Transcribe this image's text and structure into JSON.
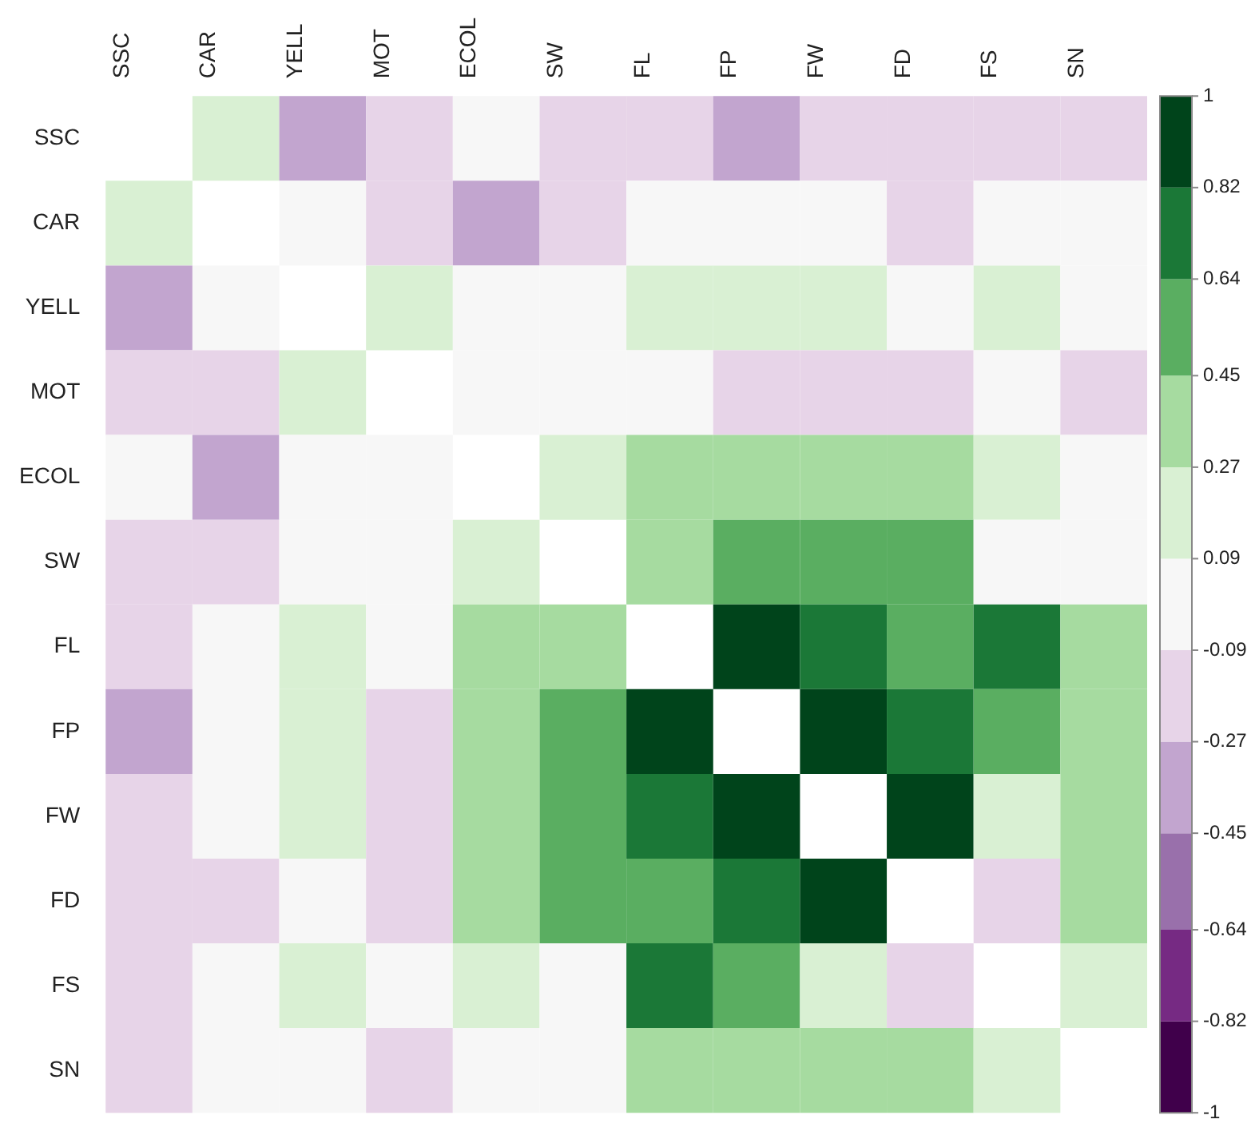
{
  "chart_data": {
    "type": "heatmap",
    "categories": [
      "SSC",
      "CAR",
      "YELL",
      "MOT",
      "ECOL",
      "SW",
      "FL",
      "FP",
      "FW",
      "FD",
      "FS",
      "SN"
    ],
    "y_categories": [
      "SSC",
      "CAR",
      "YELL",
      "MOT",
      "ECOL",
      "SW",
      "FL",
      "FP",
      "FW",
      "FD",
      "FS",
      "SN"
    ],
    "cells": [
      [
        null,
        0.18,
        -0.36,
        -0.18,
        0,
        -0.18,
        -0.18,
        -0.36,
        -0.18,
        -0.18,
        -0.18,
        -0.18
      ],
      [
        0.18,
        null,
        0,
        -0.18,
        -0.36,
        -0.18,
        0,
        0,
        0,
        -0.18,
        0,
        0
      ],
      [
        -0.36,
        0,
        null,
        0.18,
        0,
        0,
        0.18,
        0.18,
        0.18,
        0,
        0.18,
        0
      ],
      [
        -0.18,
        -0.18,
        0.18,
        null,
        0,
        0,
        0,
        -0.18,
        -0.18,
        -0.18,
        0,
        -0.18
      ],
      [
        0,
        -0.36,
        0,
        0,
        null,
        0.18,
        0.36,
        0.36,
        0.36,
        0.36,
        0.18,
        0
      ],
      [
        -0.18,
        -0.18,
        0,
        0,
        0.18,
        null,
        0.36,
        0.55,
        0.55,
        0.55,
        0,
        0
      ],
      [
        -0.18,
        0,
        0.18,
        0,
        0.36,
        0.36,
        null,
        0.91,
        0.73,
        0.55,
        0.73,
        0.36
      ],
      [
        -0.36,
        0,
        0.18,
        -0.18,
        0.36,
        0.55,
        0.91,
        null,
        0.91,
        0.73,
        0.55,
        0.36
      ],
      [
        -0.18,
        0,
        0.18,
        -0.18,
        0.36,
        0.55,
        0.73,
        0.91,
        null,
        0.91,
        0.18,
        0.36
      ],
      [
        -0.18,
        -0.18,
        0,
        -0.18,
        0.36,
        0.55,
        0.55,
        0.73,
        0.91,
        null,
        -0.18,
        0.36
      ],
      [
        -0.18,
        0,
        0.18,
        0,
        0.18,
        0,
        0.73,
        0.55,
        0.18,
        -0.18,
        null,
        0.18
      ],
      [
        -0.18,
        0,
        0,
        -0.18,
        0,
        0,
        0.36,
        0.36,
        0.36,
        0.36,
        0.18,
        null
      ]
    ],
    "clim": [
      -1,
      1
    ],
    "cticks": [
      -1,
      -0.82,
      -0.64,
      -0.45,
      -0.27,
      -0.09,
      0.09,
      0.27,
      0.45,
      0.64,
      0.82,
      1
    ],
    "colors": [
      "#40004b",
      "#762a83",
      "#9970ab",
      "#c2a5cf",
      "#e7d4e8",
      "#f7f7f7",
      "#d9f0d3",
      "#a6dba0",
      "#5aae61",
      "#1b7837",
      "#00441b"
    ]
  }
}
